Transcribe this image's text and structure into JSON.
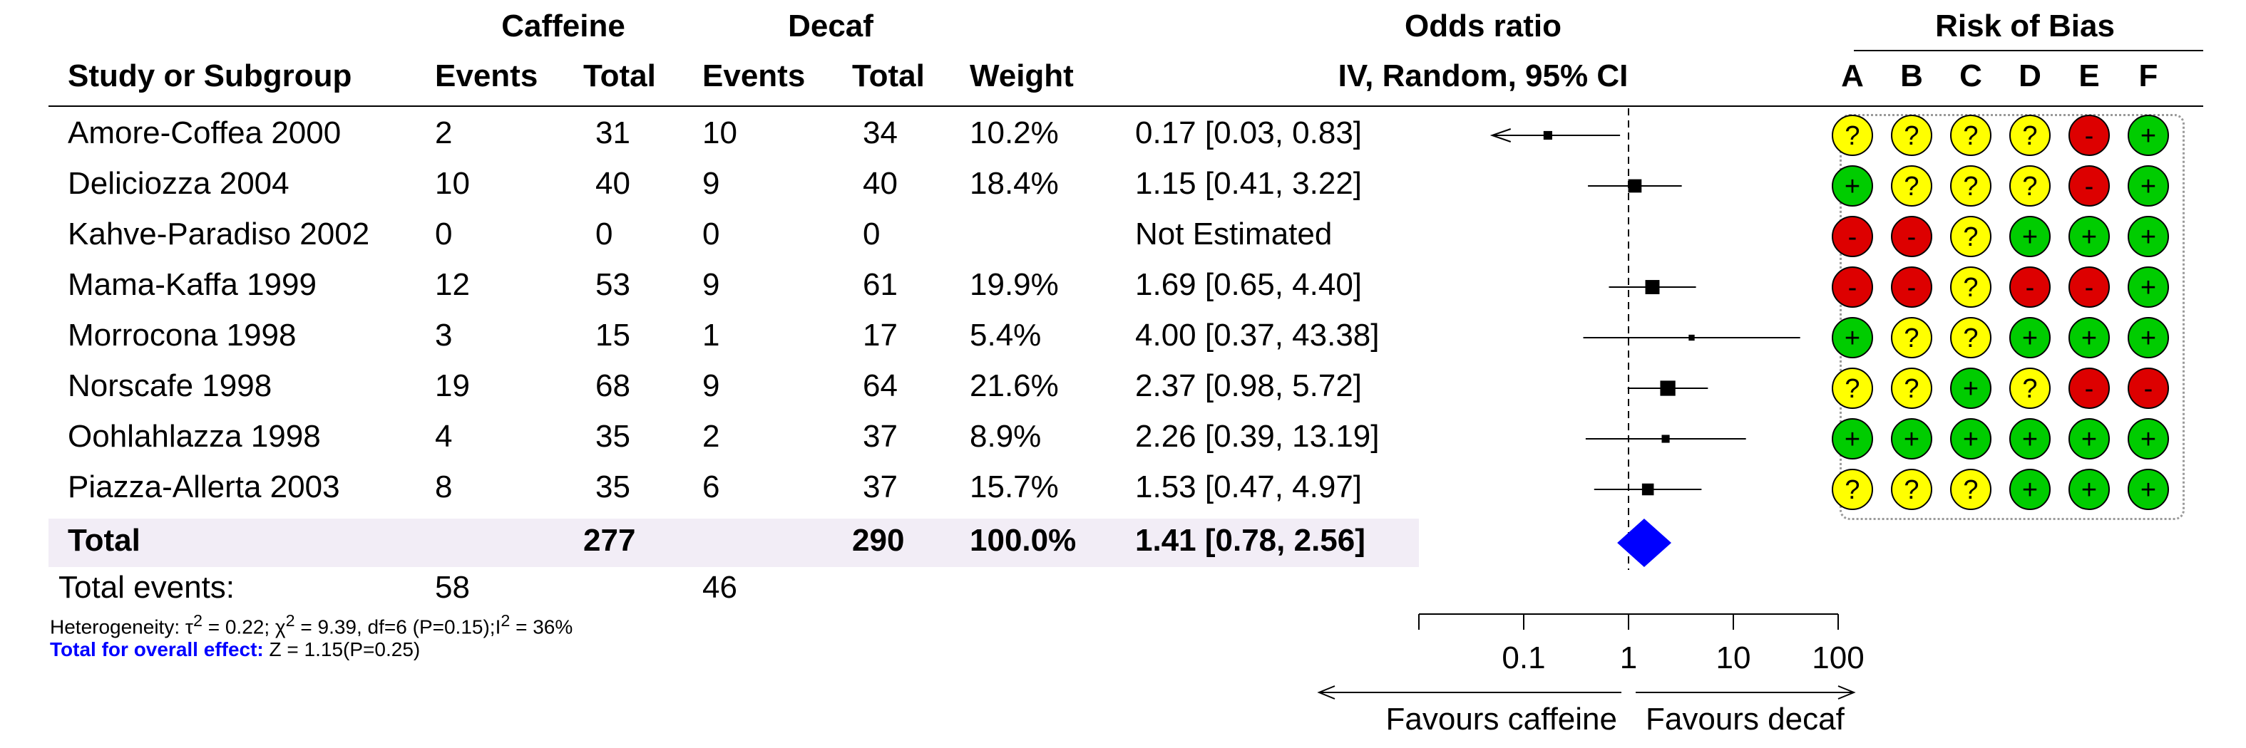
{
  "headers": {
    "study": "Study or Subgroup",
    "group1": "Caffeine",
    "group2": "Decaf",
    "events": "Events",
    "total": "Total",
    "weight": "Weight",
    "effect_title": "Odds ratio",
    "effect_method": "IV, Random, 95% CI",
    "rob_title": "Risk of Bias",
    "rob_domains": [
      "A",
      "B",
      "C",
      "D",
      "E",
      "F"
    ]
  },
  "rows": [
    {
      "study": "Amore-Coffea 2000",
      "e1": "2",
      "t1": "31",
      "e2": "10",
      "t2": "34",
      "weight": "10.2%",
      "ci_text": "0.17 [0.03, 0.83]"
    },
    {
      "study": "Deliciozza 2004",
      "e1": "10",
      "t1": "40",
      "e2": "9",
      "t2": "40",
      "weight": "18.4%",
      "ci_text": "1.15 [0.41, 3.22]"
    },
    {
      "study": "Kahve-Paradiso 2002",
      "e1": "0",
      "t1": "0",
      "e2": "0",
      "t2": "0",
      "weight": "",
      "ci_text": "Not Estimated"
    },
    {
      "study": "Mama-Kaffa 1999",
      "e1": "12",
      "t1": "53",
      "e2": "9",
      "t2": "61",
      "weight": "19.9%",
      "ci_text": "1.69 [0.65, 4.40]"
    },
    {
      "study": "Morrocona 1998",
      "e1": "3",
      "t1": "15",
      "e2": "1",
      "t2": "17",
      "weight": "5.4%",
      "ci_text": "4.00 [0.37, 43.38]"
    },
    {
      "study": "Norscafe 1998",
      "e1": "19",
      "t1": "68",
      "e2": "9",
      "t2": "64",
      "weight": "21.6%",
      "ci_text": "2.37 [0.98, 5.72]"
    },
    {
      "study": "Oohlahlazza 1998",
      "e1": "4",
      "t1": "35",
      "e2": "2",
      "t2": "37",
      "weight": "8.9%",
      "ci_text": "2.26 [0.39, 13.19]"
    },
    {
      "study": "Piazza-Allerta 2003",
      "e1": "8",
      "t1": "35",
      "e2": "6",
      "t2": "37",
      "weight": "15.7%",
      "ci_text": "1.53 [0.47, 4.97]"
    }
  ],
  "total": {
    "label": "Total",
    "t1": "277",
    "t2": "290",
    "weight": "100.0%",
    "ci_text": "1.41 [0.78, 2.56]"
  },
  "total_events": {
    "label": "Total events:",
    "e1": "58",
    "e2": "46"
  },
  "heterogeneity": {
    "prefix": "Heterogeneity: τ",
    "tau_sup": "2",
    "mid1": " = 0.22; χ",
    "chi_sup": "2",
    "mid2": " = 9.39, df=6 (P=0.15);I",
    "i_sup": "2",
    "suffix": " = 36%"
  },
  "overall_effect": {
    "label": "Total for overall effect:",
    "text": " Z = 1.15(P=0.25)"
  },
  "axis": {
    "favours_left": "Favours caffeine",
    "favours_right": "Favours decaf"
  },
  "chart_data": {
    "type": "forest",
    "scale": "log",
    "xlim": [
      0.01,
      100
    ],
    "x_ticks": [
      0.1,
      1,
      10,
      100
    ],
    "x_tick_labels": [
      "0.1",
      "1",
      "10",
      "100"
    ],
    "reference_line": 1,
    "studies": [
      {
        "name": "Amore-Coffea 2000",
        "or": 0.17,
        "lower": 0.03,
        "upper": 0.83,
        "weight": 10.2
      },
      {
        "name": "Deliciozza 2004",
        "or": 1.15,
        "lower": 0.41,
        "upper": 3.22,
        "weight": 18.4
      },
      {
        "name": "Kahve-Paradiso 2002",
        "or": null,
        "lower": null,
        "upper": null,
        "weight": null
      },
      {
        "name": "Mama-Kaffa 1999",
        "or": 1.69,
        "lower": 0.65,
        "upper": 4.4,
        "weight": 19.9
      },
      {
        "name": "Morrocona 1998",
        "or": 4.0,
        "lower": 0.37,
        "upper": 43.38,
        "weight": 5.4
      },
      {
        "name": "Norscafe 1998",
        "or": 2.37,
        "lower": 0.98,
        "upper": 5.72,
        "weight": 21.6
      },
      {
        "name": "Oohlahlazza 1998",
        "or": 2.26,
        "lower": 0.39,
        "upper": 13.19,
        "weight": 8.9
      },
      {
        "name": "Piazza-Allerta 2003",
        "or": 1.53,
        "lower": 0.47,
        "upper": 4.97,
        "weight": 15.7
      }
    ],
    "pooled": {
      "or": 1.41,
      "lower": 0.78,
      "upper": 2.56
    },
    "risk_of_bias": [
      [
        "?",
        "?",
        "?",
        "?",
        "-",
        "+"
      ],
      [
        "+",
        "?",
        "?",
        "?",
        "-",
        "+"
      ],
      [
        "-",
        "-",
        "?",
        "+",
        "+",
        "+"
      ],
      [
        "-",
        "-",
        "?",
        "-",
        "-",
        "+"
      ],
      [
        "+",
        "?",
        "?",
        "+",
        "+",
        "+"
      ],
      [
        "?",
        "?",
        "+",
        "?",
        "-",
        "-"
      ],
      [
        "+",
        "+",
        "+",
        "+",
        "+",
        "+"
      ],
      [
        "?",
        "?",
        "?",
        "+",
        "+",
        "+"
      ]
    ],
    "rob_colors": {
      "?": "#ffff00",
      "+": "#00cc00",
      "-": "#dd0000"
    },
    "colors": {
      "pooled_diamond": "#0000ff",
      "square": "#000000"
    }
  }
}
